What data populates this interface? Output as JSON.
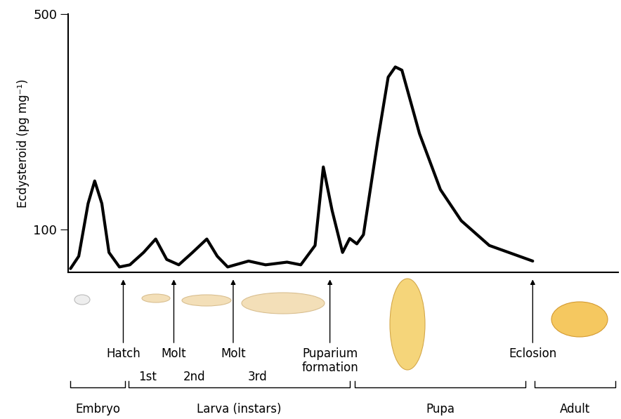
{
  "chart_data": {
    "type": "line",
    "y_label": "Ecdysteroid (pg mg⁻¹)",
    "color": "#000000",
    "xlim": [
      0,
      100
    ],
    "ylim": [
      20,
      500
    ],
    "yticks": [
      100,
      500
    ],
    "tick_labels": "y",
    "x": [
      0.4,
      1.9,
      3.6,
      4.8,
      6.1,
      7.4,
      9.3,
      11.2,
      13.7,
      15.9,
      17.9,
      20.1,
      22.6,
      25.2,
      27.1,
      29.0,
      32.8,
      35.9,
      39.8,
      42.3,
      44.9,
      46.4,
      48.0,
      49.9,
      51.2,
      52.5,
      53.7,
      56.3,
      58.2,
      59.5,
      60.7,
      63.9,
      67.7,
      71.5,
      76.6,
      84.5
    ],
    "values": [
      27,
      50,
      148,
      190,
      148,
      57,
      30,
      34,
      57,
      82,
      44,
      34,
      57,
      82,
      50,
      30,
      41,
      34,
      39,
      34,
      70,
      216,
      135,
      57,
      83,
      73,
      90,
      265,
      383,
      402,
      396,
      278,
      174,
      116,
      70,
      41
    ],
    "events": [
      {
        "label": "Hatch",
        "x": 10.0
      },
      {
        "label": "Molt",
        "x": 19.2
      },
      {
        "label": "Molt",
        "x": 30.0
      },
      {
        "label": "Puparium\nformation",
        "x": 47.6
      },
      {
        "label": "Eclosion",
        "x": 84.5
      }
    ],
    "instars": [
      {
        "label": "1st",
        "x": 14.4
      },
      {
        "label": "2nd",
        "x": 22.9
      },
      {
        "label": "3rd",
        "x": 34.4
      }
    ],
    "stages": [
      {
        "label": "Embryo",
        "start": 0.4,
        "end": 10.3
      },
      {
        "label": "Larva (instars)",
        "start": 10.9,
        "end": 51.2
      },
      {
        "label": "Pupa",
        "start": 52.1,
        "end": 83.2
      },
      {
        "label": "Adult",
        "start": 84.9,
        "end": 99.5
      }
    ]
  }
}
